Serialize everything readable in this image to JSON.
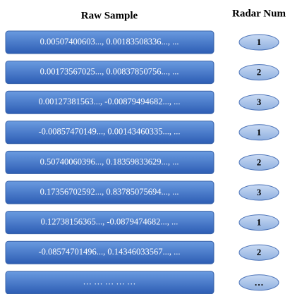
{
  "headers": {
    "raw": "Raw Sample",
    "radar": "Radar Num"
  },
  "rows": [
    {
      "sample": "0.00507400603..., 0.00183508336..., ...",
      "radar": "1"
    },
    {
      "sample": "0.00173567025..., 0.00837850756..., ...",
      "radar": "2"
    },
    {
      "sample": "0.00127381563..., -0.00879494682..., ...",
      "radar": "3"
    },
    {
      "sample": "-0.00857470149..., 0.00143460335..., ...",
      "radar": "1"
    },
    {
      "sample": "0.50740060396..., 0.18359833629..., ...",
      "radar": "2"
    },
    {
      "sample": "0.17356702592..., 0.83785075694..., ...",
      "radar": "3"
    },
    {
      "sample": "0.12738156365..., -0.0879474682..., ...",
      "radar": "1"
    },
    {
      "sample": "-0.08574701496..., 0.14346033567..., ...",
      "radar": "2"
    },
    {
      "sample": "… … … … …",
      "radar": "…"
    }
  ]
}
